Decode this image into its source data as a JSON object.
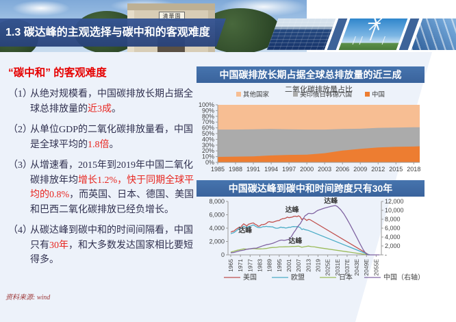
{
  "header": {
    "title": "1.3 碳达峰的主观选择与碳中和的客观难度",
    "gate_plaque": "清華園"
  },
  "colors": {
    "banner_blue": "#31528F",
    "titlebar_blue": "#3F6BA6",
    "heading_red": "#E60000",
    "highlight_red": "#E8251F",
    "text_dark": "#30304F",
    "bg_light_blue": "#EDF2FA",
    "axis_gray": "#9A9A9A"
  },
  "left_panel": {
    "heading": "“碳中和” 的客观难度",
    "points": [
      {
        "num": "（1）",
        "segments": [
          {
            "t": "从绝对规模看，中国碳排放长期占据全球总排放量的"
          },
          {
            "t": "近3成",
            "red": true
          },
          {
            "t": "。"
          }
        ]
      },
      {
        "num": "（2）",
        "segments": [
          {
            "t": "从单位GDP的二氧化碳排放量看，中国是全球平均的"
          },
          {
            "t": "1.8倍",
            "red": true
          },
          {
            "t": "。"
          }
        ]
      },
      {
        "num": "（3）",
        "segments": [
          {
            "t": "从增速看，2015年到2019年中国二氧化碳排放年均"
          },
          {
            "t": "增长1.2%，快于同期全球平均的0.8%",
            "red": true
          },
          {
            "t": "，而英国、日本、德国、美国和巴西二氧化碳排放已经负增长。"
          }
        ]
      },
      {
        "num": "（4）",
        "segments": [
          {
            "t": "从碳达峰到碳中和的时间间隔看，中国只有"
          },
          {
            "t": "30年",
            "red": true
          },
          {
            "t": "，和大多数发达国家相比要短得多。"
          }
        ]
      }
    ]
  },
  "chart1": {
    "title_bar": "中国碳排放长期占据全球总排放量的近三成",
    "chart_data": {
      "type": "area",
      "stacked_percent": true,
      "title": "二氧化碳排放量占比",
      "xlabel": "",
      "ylabel": "",
      "ylim": [
        0,
        100
      ],
      "grid": false,
      "legend_position": "top",
      "x": [
        1985,
        1988,
        1991,
        1994,
        1997,
        2000,
        2003,
        2006,
        2009,
        2012,
        2015,
        2018,
        2019
      ],
      "xticks": [
        1985,
        1988,
        1991,
        1994,
        1997,
        2000,
        2003,
        2006,
        2009,
        2012,
        2015,
        2018
      ],
      "ytick_labels": [
        "0%",
        "10%",
        "20%",
        "30%",
        "40%",
        "50%",
        "60%",
        "70%",
        "80%",
        "90%",
        "100%"
      ],
      "series": [
        {
          "name": "中国",
          "color": "#ED7D31",
          "values": [
            9.5,
            10,
            10.5,
            12,
            13,
            13.5,
            16,
            20.5,
            23.5,
            26,
            27,
            27.5,
            28
          ]
        },
        {
          "name": "美印俄日韩德六国",
          "color": "#ABABAB",
          "values": [
            47.5,
            47,
            47,
            46,
            44.5,
            43.5,
            41,
            37.5,
            35,
            34,
            33.5,
            33.5,
            33
          ]
        },
        {
          "name": "其他国家",
          "color": "#F7BE93",
          "values": [
            43,
            43,
            42.5,
            42,
            42.5,
            43,
            43,
            42,
            41.5,
            40,
            39.5,
            39,
            39
          ]
        }
      ],
      "legend_order": [
        2,
        1,
        0
      ]
    }
  },
  "chart2": {
    "title_bar": "中国碳达峰到碳中和时间跨度只有30年",
    "chart_data": {
      "type": "line",
      "grid": false,
      "legend_position": "bottom",
      "xtick_labels": [
        "1965",
        "1971",
        "1977",
        "1983",
        "1989",
        "1995",
        "2001",
        "2007",
        "2013",
        "2019",
        "2025E",
        "2031E",
        "2037E",
        "2043E",
        "2049E",
        "2055E"
      ],
      "xtick_years": [
        1965,
        1971,
        1977,
        1983,
        1989,
        1995,
        2001,
        2007,
        2013,
        2019,
        2025,
        2031,
        2037,
        2043,
        2049,
        2055
      ],
      "left_axis": {
        "min": 0,
        "max": 8000,
        "tick_labels": [
          "0",
          "2,000",
          "4,000",
          "6,000",
          "8,000"
        ]
      },
      "right_axis": {
        "min": 0,
        "max": 12000,
        "tick_labels": [
          "-",
          "2,000",
          "4,000",
          "6,000",
          "8,000",
          "10,000",
          "12,000"
        ]
      },
      "series": [
        {
          "name": "美国",
          "color": "#C0504D",
          "axis": "left",
          "points": [
            [
              1965,
              3390
            ],
            [
              1966,
              3520
            ],
            [
              1967,
              3560
            ],
            [
              1968,
              3780
            ],
            [
              1969,
              3950
            ],
            [
              1970,
              4080
            ],
            [
              1971,
              4100
            ],
            [
              1972,
              4390
            ],
            [
              1973,
              4650
            ],
            [
              1974,
              4480
            ],
            [
              1975,
              4340
            ],
            [
              1976,
              4600
            ],
            [
              1977,
              4660
            ],
            [
              1978,
              4730
            ],
            [
              1979,
              4780
            ],
            [
              1980,
              4600
            ],
            [
              1981,
              4480
            ],
            [
              1982,
              4290
            ],
            [
              1983,
              4340
            ],
            [
              1984,
              4520
            ],
            [
              1985,
              4530
            ],
            [
              1986,
              4570
            ],
            [
              1987,
              4700
            ],
            [
              1988,
              4910
            ],
            [
              1989,
              4970
            ],
            [
              1990,
              4900
            ],
            [
              1991,
              4880
            ],
            [
              1992,
              4960
            ],
            [
              1993,
              5050
            ],
            [
              1994,
              5120
            ],
            [
              1995,
              5150
            ],
            [
              1996,
              5310
            ],
            [
              1997,
              5400
            ],
            [
              1998,
              5440
            ],
            [
              1999,
              5500
            ],
            [
              2000,
              5650
            ],
            [
              2001,
              5570
            ],
            [
              2002,
              5610
            ],
            [
              2003,
              5650
            ],
            [
              2004,
              5750
            ],
            [
              2005,
              5800
            ],
            [
              2006,
              5720
            ],
            [
              2007,
              5850
            ],
            [
              2008,
              5680
            ],
            [
              2009,
              5280
            ],
            [
              2010,
              5470
            ],
            [
              2011,
              5350
            ],
            [
              2012,
              5150
            ],
            [
              2013,
              5300
            ],
            [
              2014,
              5280
            ],
            [
              2050,
              80
            ],
            [
              2051,
              0
            ]
          ]
        },
        {
          "name": "欧盟",
          "color": "#4BACC6",
          "axis": "left",
          "points": [
            [
              1965,
              3160
            ],
            [
              1966,
              3260
            ],
            [
              1967,
              3330
            ],
            [
              1968,
              3520
            ],
            [
              1969,
              3710
            ],
            [
              1970,
              3900
            ],
            [
              1971,
              3960
            ],
            [
              1972,
              4080
            ],
            [
              1973,
              4290
            ],
            [
              1974,
              4180
            ],
            [
              1975,
              4020
            ],
            [
              1976,
              4270
            ],
            [
              1977,
              4280
            ],
            [
              1978,
              4380
            ],
            [
              1979,
              4480
            ],
            [
              1980,
              4340
            ],
            [
              1981,
              4180
            ],
            [
              1982,
              4090
            ],
            [
              1983,
              4080
            ],
            [
              1984,
              4130
            ],
            [
              1985,
              4230
            ],
            [
              1986,
              4220
            ],
            [
              1987,
              4270
            ],
            [
              1988,
              4220
            ],
            [
              1989,
              4230
            ],
            [
              1990,
              4190
            ],
            [
              1991,
              4180
            ],
            [
              1992,
              4060
            ],
            [
              1993,
              3990
            ],
            [
              1994,
              3990
            ],
            [
              1995,
              4050
            ],
            [
              1996,
              4150
            ],
            [
              1997,
              4080
            ],
            [
              1998,
              4080
            ],
            [
              1999,
              4010
            ],
            [
              2000,
              4050
            ],
            [
              2001,
              4140
            ],
            [
              2002,
              4120
            ],
            [
              2003,
              4220
            ],
            [
              2004,
              4240
            ],
            [
              2005,
              4220
            ],
            [
              2006,
              4230
            ],
            [
              2007,
              4180
            ],
            [
              2008,
              4080
            ],
            [
              2009,
              3790
            ],
            [
              2010,
              3890
            ],
            [
              2011,
              3760
            ],
            [
              2012,
              3720
            ],
            [
              2013,
              3660
            ],
            [
              2050,
              60
            ],
            [
              2051,
              0
            ]
          ]
        },
        {
          "name": "日本",
          "color": "#9BBB59",
          "axis": "left",
          "points": [
            [
              1965,
              400
            ],
            [
              1967,
              540
            ],
            [
              1969,
              690
            ],
            [
              1971,
              780
            ],
            [
              1973,
              890
            ],
            [
              1975,
              850
            ],
            [
              1977,
              900
            ],
            [
              1979,
              940
            ],
            [
              1981,
              900
            ],
            [
              1983,
              890
            ],
            [
              1985,
              910
            ],
            [
              1987,
              950
            ],
            [
              1989,
              1060
            ],
            [
              1991,
              1110
            ],
            [
              1993,
              1120
            ],
            [
              1995,
              1190
            ],
            [
              1997,
              1190
            ],
            [
              1999,
              1210
            ],
            [
              2001,
              1220
            ],
            [
              2003,
              1250
            ],
            [
              2005,
              1260
            ],
            [
              2007,
              1300
            ],
            [
              2009,
              1140
            ],
            [
              2011,
              1230
            ],
            [
              2013,
              1310
            ],
            [
              2015,
              1230
            ],
            [
              2017,
              1190
            ],
            [
              2019,
              1100
            ],
            [
              2049,
              40
            ],
            [
              2050,
              0
            ]
          ]
        },
        {
          "name": "中国（右轴）",
          "color": "#8064A2",
          "axis": "right",
          "points": [
            [
              1965,
              460
            ],
            [
              1967,
              540
            ],
            [
              1969,
              760
            ],
            [
              1971,
              940
            ],
            [
              1973,
              1060
            ],
            [
              1975,
              1260
            ],
            [
              1977,
              1360
            ],
            [
              1979,
              1480
            ],
            [
              1981,
              1520
            ],
            [
              1983,
              1780
            ],
            [
              1985,
              2050
            ],
            [
              1987,
              2280
            ],
            [
              1989,
              2400
            ],
            [
              1991,
              2600
            ],
            [
              1993,
              2900
            ],
            [
              1995,
              3200
            ],
            [
              1996,
              3300
            ],
            [
              1997,
              3300
            ],
            [
              1998,
              3250
            ],
            [
              1999,
              3300
            ],
            [
              2000,
              3400
            ],
            [
              2001,
              3500
            ],
            [
              2002,
              3800
            ],
            [
              2003,
              4400
            ],
            [
              2004,
              5000
            ],
            [
              2005,
              5500
            ],
            [
              2006,
              6100
            ],
            [
              2007,
              6600
            ],
            [
              2008,
              7000
            ],
            [
              2009,
              7600
            ],
            [
              2010,
              8200
            ],
            [
              2011,
              8800
            ],
            [
              2012,
              9000
            ],
            [
              2013,
              9300
            ],
            [
              2014,
              9300
            ],
            [
              2015,
              9250
            ],
            [
              2016,
              9300
            ],
            [
              2017,
              9500
            ],
            [
              2018,
              9800
            ],
            [
              2019,
              10000
            ],
            [
              2021,
              10250
            ],
            [
              2023,
              10500
            ],
            [
              2025,
              10700
            ],
            [
              2027,
              10900
            ],
            [
              2029,
              11050
            ],
            [
              2030,
              11050
            ],
            [
              2031,
              10850
            ],
            [
              2033,
              10150
            ],
            [
              2035,
              9200
            ],
            [
              2037,
              8000
            ],
            [
              2039,
              6700
            ],
            [
              2041,
              5300
            ],
            [
              2043,
              3900
            ],
            [
              2045,
              2500
            ],
            [
              2047,
              1150
            ],
            [
              2049,
              120
            ],
            [
              2050,
              0
            ],
            [
              2057,
              0
            ]
          ]
        }
      ],
      "annotations": [
        {
          "text": "达峰",
          "year": 1974,
          "value": 3350,
          "axis": "left"
        },
        {
          "text": "达峰",
          "year": 2003,
          "value": 6400,
          "axis": "left"
        },
        {
          "text": "达峰",
          "year": 2005,
          "value": 1750,
          "axis": "left"
        },
        {
          "text": "达峰",
          "year": 2027,
          "value": 11650,
          "axis": "right"
        }
      ]
    }
  },
  "source_note": "资料来源: wind"
}
